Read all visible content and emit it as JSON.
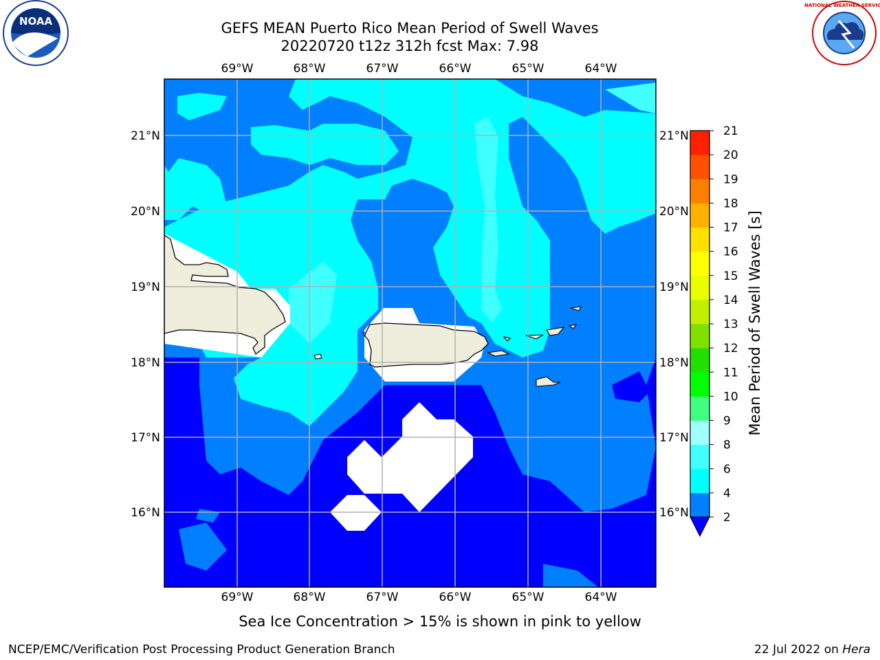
{
  "title": {
    "line1": "GEFS MEAN Puerto Rico Mean Period of Swell Waves",
    "line2": "20220720 t12z 312h fcst   Max: 7.98"
  },
  "logos": {
    "left": {
      "name": "NOAA",
      "ring_text": "NATIONAL OCEANIC AND ATMOSPHERIC ADMINISTRATION · U.S. DEPARTMENT OF COMMERCE"
    },
    "right": {
      "name": "NATIONAL WEATHER SERVICE"
    }
  },
  "map": {
    "lon_labels": [
      "69°W",
      "68°W",
      "67°W",
      "66°W",
      "65°W",
      "64°W"
    ],
    "lat_labels": [
      "21°N",
      "20°N",
      "19°N",
      "18°N",
      "17°N",
      "16°N"
    ],
    "colors": {
      "ocean_2_4": "#0000ff",
      "ocean_4_6": "#0080ff",
      "ocean_6_8": "#00ffff",
      "ocean_8_9": "#40ffff",
      "land": "#efeedc",
      "no_data": "#ffffff",
      "grid": "#b0b0b0"
    }
  },
  "colorbar": {
    "label": "Mean Period of Swell Waves [s]",
    "ticks": [
      "2",
      "4",
      "6",
      "8",
      "9",
      "10",
      "11",
      "12",
      "13",
      "14",
      "15",
      "16",
      "17",
      "18",
      "19",
      "20",
      "21"
    ],
    "colors": [
      "#0080ff",
      "#00ffff",
      "#40ffff",
      "#a0ffff",
      "#40ff80",
      "#00ff00",
      "#20e000",
      "#80e000",
      "#c0f000",
      "#e8ff00",
      "#ffff00",
      "#ffe000",
      "#ffb000",
      "#ff8000",
      "#ff5000",
      "#ff2000"
    ],
    "under_color": "#0000ff"
  },
  "footer": {
    "note": "Sea Ice Concentration > 15% is shown in pink to yellow",
    "left": "NCEP/EMC/Verification Post Processing Product Generation Branch",
    "right_date": "22 Jul 2022 on ",
    "right_host": "Hera"
  }
}
